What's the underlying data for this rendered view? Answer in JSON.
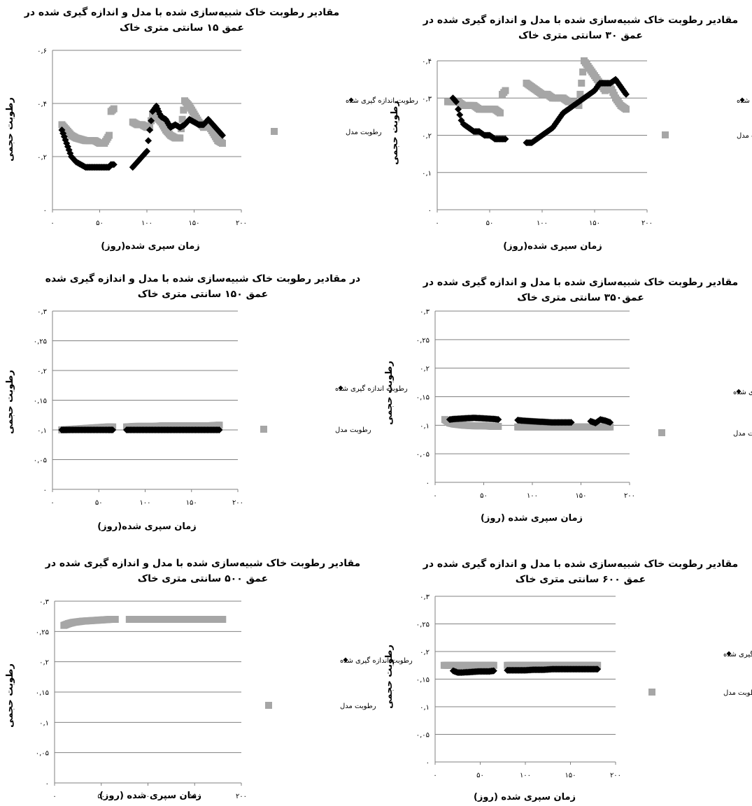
{
  "colors": {
    "measured": "#000000",
    "model": "#a6a6a6",
    "grid": "#808080"
  },
  "chart_data": [
    {
      "type": "scatter",
      "title_lines": [
        "مقادیر رطوبت خاک شبیه‌سازی شده با مدل و اندازه گیری شده در",
        "عمق ۱۵ سانتی متری خاک"
      ],
      "xlabel": "زمان سپری شده(روز)",
      "ylabel": "رطوبت حجمی",
      "xlim": [
        0,
        200
      ],
      "ylim": [
        0,
        0.6
      ],
      "xticks": [
        0,
        50,
        100,
        150,
        200
      ],
      "xtick_labels": [
        "۰",
        "۵۰",
        "۱۰۰",
        "۱۵۰",
        "۲۰۰"
      ],
      "yticks": [
        0,
        0.2,
        0.4,
        0.6
      ],
      "ytick_labels": [
        "۰",
        "۰,۲",
        "۰,۴",
        "۰,۶"
      ],
      "legend": "right",
      "series": [
        {
          "name": "رطوبت اندازه گیری شده",
          "marker": "diamond",
          "x": [
            10,
            15,
            20,
            25,
            30,
            35,
            40,
            45,
            50,
            55,
            60,
            62,
            65,
            85,
            90,
            95,
            100,
            103,
            106,
            110,
            115,
            120,
            125,
            130,
            135,
            140,
            145,
            150,
            155,
            160,
            165,
            170,
            175,
            180
          ],
          "y": [
            0.3,
            0.25,
            0.2,
            0.18,
            0.17,
            0.16,
            0.16,
            0.16,
            0.16,
            0.16,
            0.16,
            0.17,
            0.17,
            0.16,
            0.18,
            0.2,
            0.22,
            0.3,
            0.37,
            0.39,
            0.35,
            0.34,
            0.31,
            0.32,
            0.31,
            0.32,
            0.34,
            0.33,
            0.32,
            0.32,
            0.34,
            0.32,
            0.3,
            0.28
          ]
        },
        {
          "name": "رطوبت مدل",
          "marker": "square",
          "x": [
            10,
            15,
            20,
            25,
            30,
            35,
            40,
            45,
            50,
            55,
            60,
            62,
            65,
            85,
            90,
            95,
            100,
            103,
            106,
            110,
            115,
            120,
            125,
            130,
            135,
            140,
            145,
            150,
            155,
            160,
            165,
            170,
            175,
            180
          ],
          "y": [
            0.32,
            0.3,
            0.28,
            0.27,
            0.265,
            0.26,
            0.26,
            0.26,
            0.25,
            0.25,
            0.28,
            0.37,
            0.38,
            0.33,
            0.32,
            0.32,
            0.31,
            0.31,
            0.36,
            0.35,
            0.33,
            0.3,
            0.28,
            0.27,
            0.27,
            0.41,
            0.39,
            0.36,
            0.33,
            0.31,
            0.32,
            0.29,
            0.26,
            0.25
          ]
        }
      ]
    },
    {
      "type": "scatter",
      "title_lines": [
        "مقادیر رطوبت خاک شبیه‌سازی شده با مدل و اندازه گیری شده در",
        "عمق ۳۰ سانتی متری خاک"
      ],
      "xlabel": "زمان سپری شده(روز)",
      "ylabel": "رطوبت حجمی",
      "xlim": [
        0,
        200
      ],
      "ylim": [
        0,
        0.4
      ],
      "xticks": [
        0,
        50,
        100,
        150,
        200
      ],
      "xtick_labels": [
        "۰",
        "۵۰",
        "۱۰۰",
        "۱۵۰",
        "۲۰۰"
      ],
      "yticks": [
        0,
        0.1,
        0.2,
        0.3,
        0.4
      ],
      "ytick_labels": [
        "۰",
        "۰,۱",
        "۰,۲",
        "۰,۳",
        "۰,۴"
      ],
      "legend": "right",
      "series": [
        {
          "name": "رطوبت اندازه گیری شده",
          "marker": "diamond",
          "x": [
            15,
            18,
            20,
            23,
            25,
            30,
            35,
            40,
            45,
            50,
            55,
            60,
            65,
            85,
            90,
            95,
            100,
            105,
            110,
            115,
            120,
            125,
            130,
            135,
            140,
            145,
            150,
            155,
            160,
            165,
            170,
            175,
            180
          ],
          "y": [
            0.3,
            0.29,
            0.27,
            0.24,
            0.23,
            0.22,
            0.21,
            0.21,
            0.2,
            0.2,
            0.19,
            0.19,
            0.19,
            0.18,
            0.18,
            0.19,
            0.2,
            0.21,
            0.22,
            0.24,
            0.26,
            0.27,
            0.28,
            0.29,
            0.3,
            0.31,
            0.32,
            0.34,
            0.34,
            0.34,
            0.35,
            0.33,
            0.31
          ]
        },
        {
          "name": "رطوبت مدل",
          "marker": "square",
          "x": [
            10,
            15,
            20,
            25,
            30,
            35,
            40,
            45,
            50,
            55,
            60,
            62,
            65,
            85,
            90,
            95,
            100,
            105,
            110,
            115,
            120,
            125,
            130,
            135,
            140,
            145,
            150,
            155,
            160,
            165,
            170,
            175,
            180
          ],
          "y": [
            0.29,
            0.29,
            0.29,
            0.28,
            0.28,
            0.28,
            0.27,
            0.27,
            0.27,
            0.27,
            0.26,
            0.31,
            0.32,
            0.34,
            0.33,
            0.32,
            0.31,
            0.31,
            0.3,
            0.3,
            0.3,
            0.29,
            0.29,
            0.28,
            0.4,
            0.38,
            0.36,
            0.34,
            0.32,
            0.33,
            0.3,
            0.28,
            0.27
          ]
        }
      ]
    },
    {
      "type": "scatter",
      "title_lines": [
        "در  مقادیر رطوبت خاک شبیه‌سازی شده با مدل و اندازه گیری شده",
        "عمق ۱۵۰ سانتی متری خاک"
      ],
      "xlabel": "زمان سپری شده(روز)",
      "ylabel": "رطوبت حجمی",
      "xlim": [
        0,
        200
      ],
      "ylim": [
        0,
        0.3
      ],
      "xticks": [
        0,
        50,
        100,
        150,
        200
      ],
      "xtick_labels": [
        "۰",
        "۵۰",
        "۱۰۰",
        "۱۵۰",
        "۲۰۰"
      ],
      "yticks": [
        0,
        0.05,
        0.1,
        0.15,
        0.2,
        0.25,
        0.3
      ],
      "ytick_labels": [
        "۰",
        "۰,۰۵",
        "۰,۱",
        "۰,۱۵",
        "۰,۲",
        "۰,۲۵",
        "۰,۳"
      ],
      "legend": "right",
      "series": [
        {
          "name": "رطوبت اندازه گیری شده",
          "marker": "diamond",
          "x": [
            10,
            20,
            30,
            40,
            50,
            60,
            65,
            80,
            90,
            100,
            110,
            120,
            130,
            140,
            150,
            160,
            170,
            180
          ],
          "y": [
            0.1,
            0.1,
            0.1,
            0.1,
            0.1,
            0.1,
            0.1,
            0.1,
            0.1,
            0.1,
            0.1,
            0.1,
            0.1,
            0.1,
            0.1,
            0.1,
            0.1,
            0.1
          ]
        },
        {
          "name": "رطوبت مدل",
          "marker": "square",
          "x": [
            10,
            20,
            30,
            40,
            50,
            60,
            65,
            80,
            90,
            100,
            110,
            120,
            130,
            140,
            150,
            160,
            170,
            180
          ],
          "y": [
            0.1,
            0.101,
            0.102,
            0.103,
            0.104,
            0.105,
            0.105,
            0.105,
            0.106,
            0.106,
            0.106,
            0.107,
            0.107,
            0.107,
            0.107,
            0.107,
            0.107,
            0.108
          ]
        }
      ]
    },
    {
      "type": "scatter",
      "title_lines": [
        "مقادیر رطوبت خاک شبیه‌سازی شده با مدل و اندازه گیری شده در",
        "عمق۳۵۰ سانتی متری خاک"
      ],
      "xlabel": "زمان سپری شده (روز)",
      "ylabel": "رطوبت حجمی",
      "xlim": [
        0,
        200
      ],
      "ylim": [
        0,
        0.3
      ],
      "xticks": [
        0,
        50,
        100,
        150,
        200
      ],
      "xtick_labels": [
        "۰",
        "۵۰",
        "۱۰۰",
        "۱۵۰",
        "۲۰۰"
      ],
      "yticks": [
        0,
        0.05,
        0.1,
        0.15,
        0.2,
        0.25,
        0.3
      ],
      "ytick_labels": [
        "۰",
        "۰,۰۵",
        "۰,۱",
        "۰,۱۵",
        "۰,۲",
        "۰,۲۵",
        "۰,۳"
      ],
      "legend": "right",
      "series": [
        {
          "name": "رطوبت اندازه گیری شده",
          "marker": "diamond",
          "x": [
            15,
            20,
            30,
            40,
            50,
            60,
            65,
            85,
            90,
            100,
            110,
            120,
            130,
            140,
            160,
            165,
            170,
            175,
            180
          ],
          "y": [
            0.11,
            0.111,
            0.112,
            0.113,
            0.112,
            0.111,
            0.11,
            0.109,
            0.108,
            0.107,
            0.106,
            0.105,
            0.105,
            0.105,
            0.107,
            0.104,
            0.11,
            0.108,
            0.105
          ]
        },
        {
          "name": "رطوبت مدل",
          "marker": "square",
          "x": [
            10,
            15,
            20,
            30,
            40,
            50,
            60,
            65,
            85,
            90,
            100,
            110,
            120,
            130,
            140,
            150,
            160,
            170,
            180
          ],
          "y": [
            0.11,
            0.104,
            0.102,
            0.1,
            0.099,
            0.099,
            0.098,
            0.098,
            0.097,
            0.097,
            0.097,
            0.097,
            0.097,
            0.097,
            0.097,
            0.097,
            0.097,
            0.097,
            0.097
          ]
        }
      ]
    },
    {
      "type": "scatter",
      "title_lines": [
        "مقادیر رطوبت خاک شبیه‌سازی شده با مدل و اندازه گیری شده در",
        "عمق ۵۰۰ سانتی متری خاک"
      ],
      "xlabel": "زمان سپری شده (روز)",
      "ylabel": "رطوبت حجمی",
      "xlim": [
        0,
        200
      ],
      "ylim": [
        0,
        0.3
      ],
      "xticks": [
        0,
        50,
        100,
        150,
        200
      ],
      "xtick_labels": [
        "۰",
        "۵۰",
        "۱۰۰",
        "۱۵۰",
        "۲۰۰"
      ],
      "yticks": [
        0,
        0.05,
        0.1,
        0.15,
        0.2,
        0.25,
        0.3
      ],
      "ytick_labels": [
        "۰",
        "۰,۰۵",
        "۰,۱",
        "۰,۱۵",
        "۰,۲",
        "۰,۲۵",
        "۰,۳"
      ],
      "legend": "right",
      "series": [
        {
          "name": "رطوبت اندازه گیری شده",
          "marker": "diamond",
          "x": [],
          "y": []
        },
        {
          "name": "رطوبت مدل",
          "marker": "square",
          "x": [
            10,
            15,
            20,
            30,
            40,
            50,
            60,
            65,
            80,
            90,
            100,
            110,
            120,
            130,
            140,
            150,
            160,
            170,
            180
          ],
          "y": [
            0.26,
            0.263,
            0.265,
            0.267,
            0.268,
            0.269,
            0.27,
            0.27,
            0.27,
            0.27,
            0.27,
            0.27,
            0.27,
            0.27,
            0.27,
            0.27,
            0.27,
            0.27,
            0.27
          ]
        }
      ]
    },
    {
      "type": "scatter",
      "title_lines": [
        "مقادیر رطوبت خاک شبیه‌سازی شده با مدل و اندازه گیری شده در",
        "عمق ۶۰۰ سانتی متری خاک"
      ],
      "xlabel": "زمان سپری شده (روز)",
      "ylabel": "رطوبت حجمی",
      "xlim": [
        0,
        200
      ],
      "ylim": [
        0,
        0.3
      ],
      "xticks": [
        0,
        50,
        100,
        150,
        200
      ],
      "xtick_labels": [
        "۰",
        "۵۰",
        "۱۰۰",
        "۱۵۰",
        "۲۰۰"
      ],
      "yticks": [
        0,
        0.05,
        0.1,
        0.15,
        0.2,
        0.25,
        0.3
      ],
      "ytick_labels": [
        "۰",
        "۰,۰۵",
        "۰,۱",
        "۰,۱۵",
        "۰,۲",
        "۰,۲۵",
        "۰,۳"
      ],
      "legend": "right",
      "series": [
        {
          "name": "رطوبت اندازه گیری شده",
          "marker": "diamond",
          "x": [
            20,
            25,
            30,
            40,
            50,
            60,
            65,
            80,
            90,
            100,
            110,
            120,
            130,
            140,
            150,
            160,
            170,
            180
          ],
          "y": [
            0.165,
            0.162,
            0.162,
            0.163,
            0.164,
            0.164,
            0.165,
            0.166,
            0.166,
            0.166,
            0.167,
            0.167,
            0.168,
            0.168,
            0.168,
            0.168,
            0.168,
            0.168
          ]
        },
        {
          "name": "رطوبت مدل",
          "marker": "square",
          "x": [
            10,
            20,
            30,
            40,
            50,
            60,
            65,
            80,
            90,
            100,
            110,
            120,
            130,
            140,
            150,
            160,
            170,
            180
          ],
          "y": [
            0.175,
            0.175,
            0.175,
            0.175,
            0.175,
            0.175,
            0.175,
            0.175,
            0.175,
            0.175,
            0.175,
            0.175,
            0.175,
            0.175,
            0.175,
            0.175,
            0.175,
            0.175
          ]
        }
      ]
    }
  ]
}
